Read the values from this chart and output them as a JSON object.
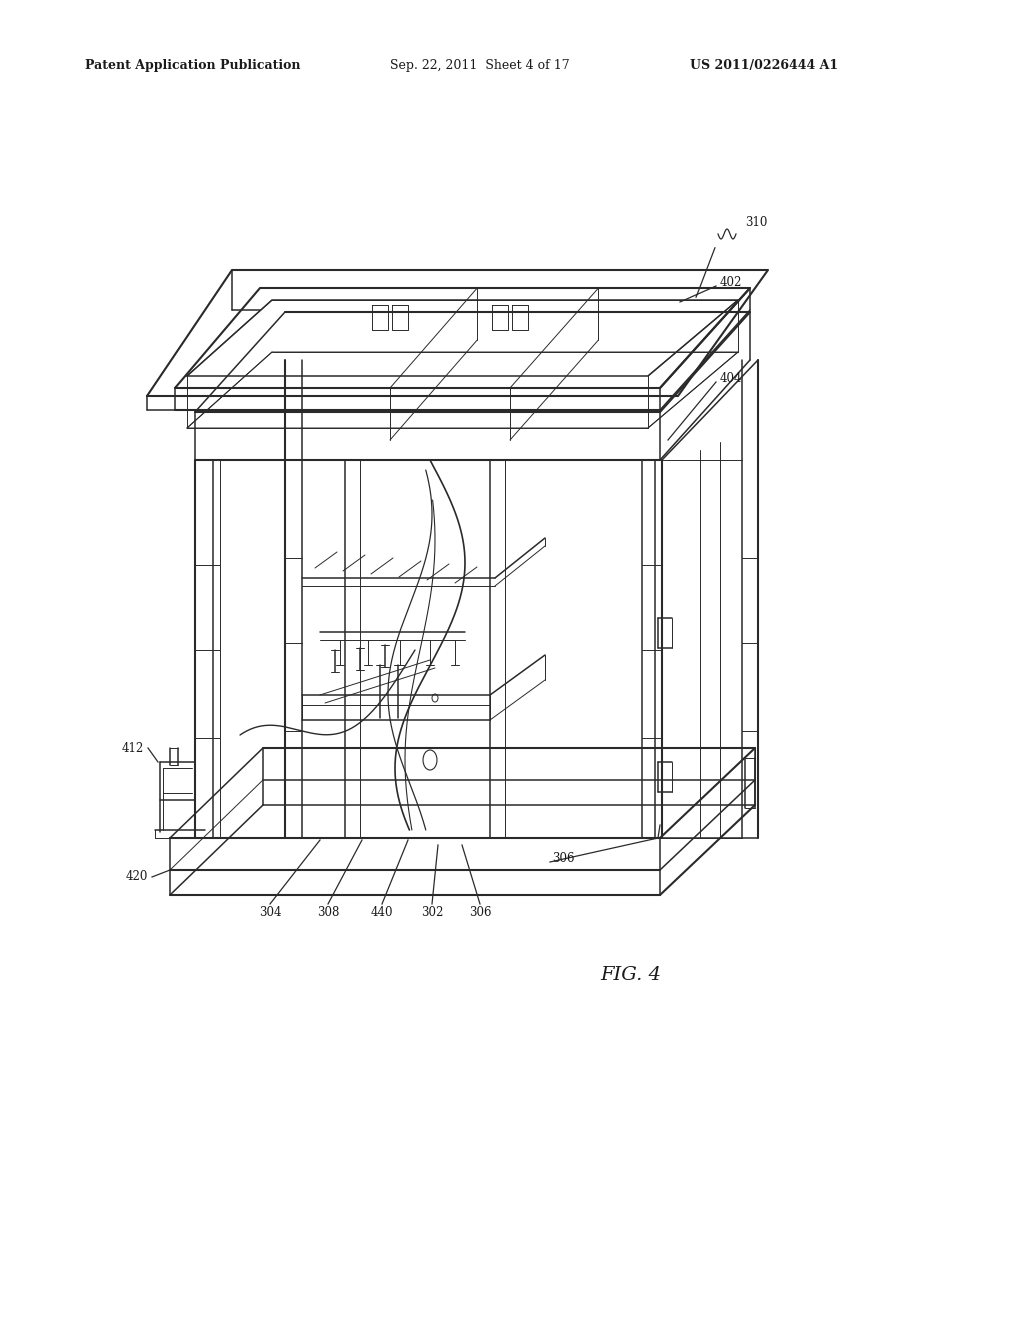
{
  "background_color": "#ffffff",
  "header_left": "Patent Application Publication",
  "header_center": "Sep. 22, 2011  Sheet 4 of 17",
  "header_right": "US 2011/0226444 A1",
  "fig_label": "FIG. 4",
  "line_color": "#2a2a2a",
  "text_color": "#1a1a1a",
  "leader_color": "#2a2a2a",
  "lw_heavy": 1.5,
  "lw_medium": 1.1,
  "lw_light": 0.7
}
